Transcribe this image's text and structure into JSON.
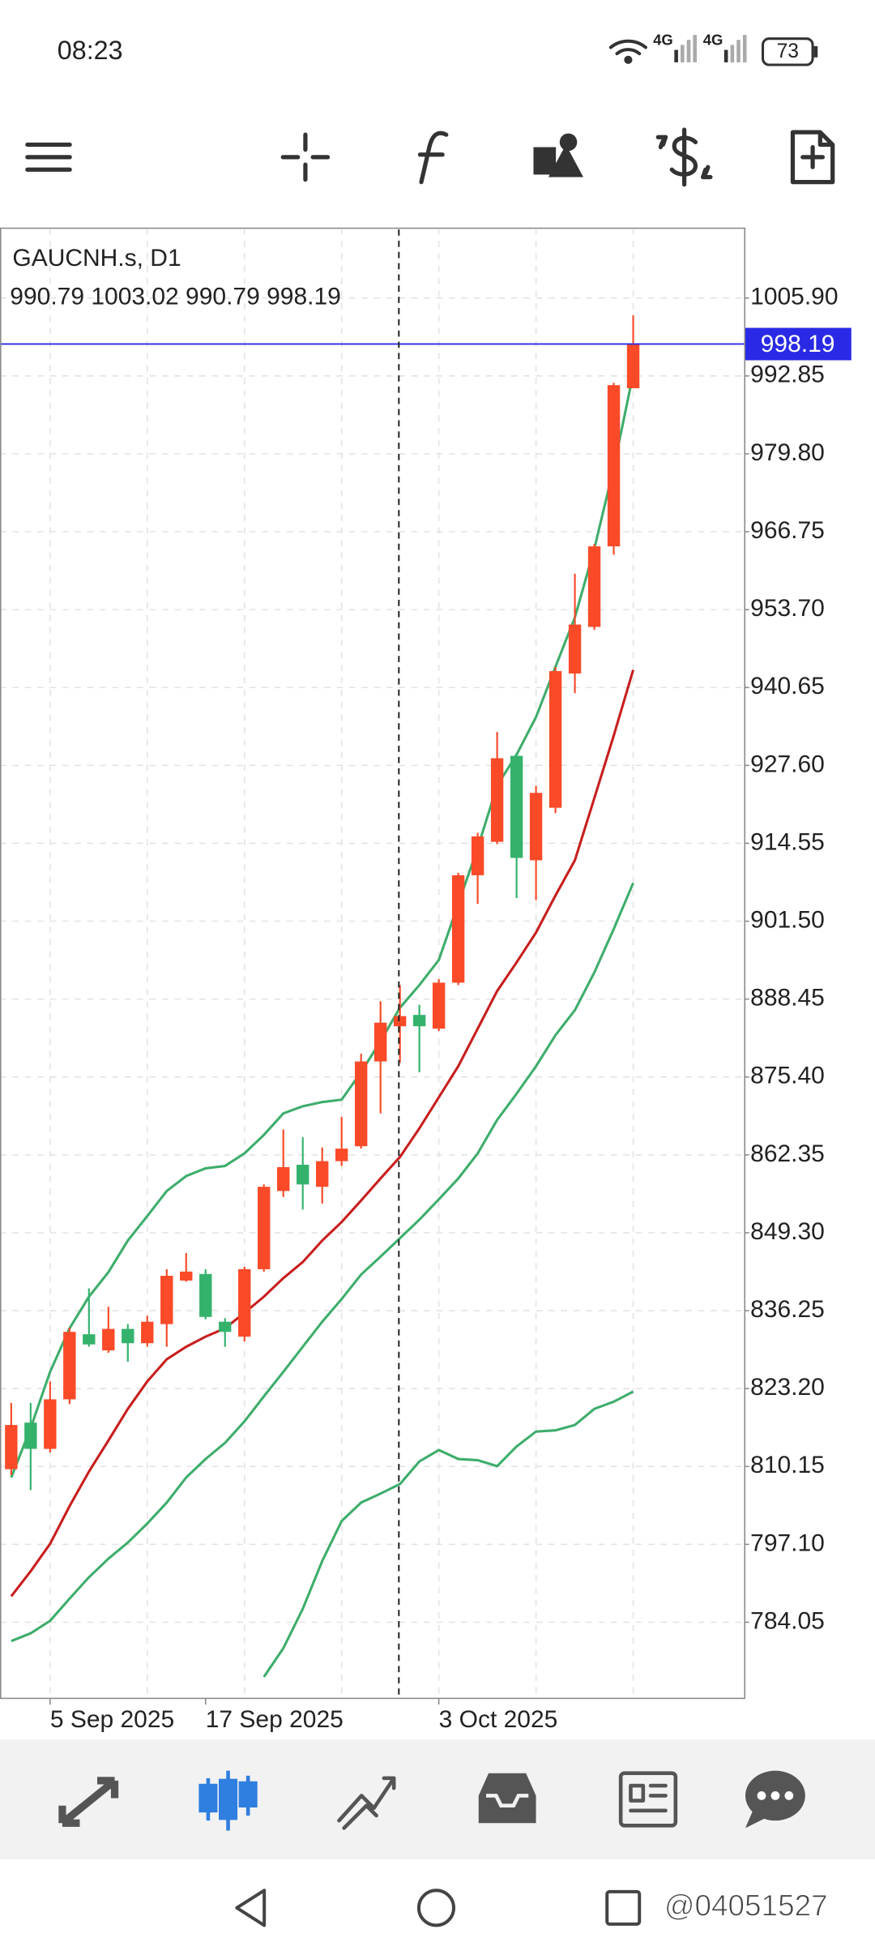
{
  "status_bar": {
    "time": "08:23",
    "network": [
      "4G",
      "4G"
    ],
    "battery": "73"
  },
  "chart_data": {
    "type": "candlestick",
    "symbol_label": "GAUCNH.s, D1",
    "ohlc_label": "990.79 1003.02 990.79 998.19",
    "categories": [
      null,
      null,
      "5 Sep 2025",
      null,
      null,
      null,
      null,
      null,
      null,
      null,
      "17 Sep 2025",
      null,
      null,
      null,
      null,
      null,
      null,
      null,
      null,
      null,
      null,
      null,
      "3 Oct 2025",
      null,
      null,
      null,
      null,
      null,
      null,
      null,
      null,
      null,
      null
    ],
    "open": [
      809.7,
      817.5,
      813.1,
      821.4,
      832.3,
      829.6,
      833.2,
      830.8,
      834.0,
      841.3,
      842.4,
      834.4,
      831.9,
      843.2,
      856.3,
      860.7,
      857.0,
      861.3,
      863.8,
      878.0,
      883.9,
      885.8,
      883.5,
      891.2,
      909.2,
      914.8,
      929.2,
      911.7,
      920.5,
      943.0,
      950.8,
      964.3,
      990.79
    ],
    "high": [
      820.8,
      820.8,
      824.4,
      833.4,
      840.0,
      836.9,
      834.0,
      835.4,
      843.2,
      845.9,
      843.2,
      835.0,
      843.6,
      857.4,
      866.6,
      865.3,
      863.6,
      868.7,
      879.3,
      888.1,
      890.8,
      887.5,
      891.8,
      909.6,
      916.3,
      933.2,
      929.7,
      924.2,
      944.1,
      959.7,
      964.7,
      991.7,
      1003.02
    ],
    "low": [
      808.7,
      806.2,
      812.5,
      820.6,
      830.2,
      829.2,
      827.7,
      830.2,
      830.2,
      841.1,
      834.8,
      830.2,
      831.1,
      842.8,
      855.3,
      853.2,
      854.2,
      860.5,
      863.4,
      869.3,
      877.8,
      876.2,
      883.1,
      890.8,
      904.4,
      914.4,
      905.4,
      905.0,
      919.6,
      939.7,
      950.3,
      962.9,
      990.79
    ],
    "close": [
      817.1,
      813.1,
      821.4,
      832.7,
      830.6,
      833.2,
      830.8,
      834.4,
      842.1,
      842.8,
      835.2,
      832.7,
      843.2,
      857.0,
      860.3,
      857.4,
      861.3,
      863.4,
      878.0,
      884.5,
      885.6,
      883.9,
      891.2,
      909.2,
      915.7,
      928.8,
      912.1,
      923.0,
      943.4,
      951.2,
      964.3,
      991.3,
      998.19
    ],
    "up_color": "#fa4a28",
    "down_color": "#34b26c",
    "lines": [
      {
        "color": "#3ead6b",
        "values": [
          808.3,
          816.6,
          826.0,
          833.3,
          838.6,
          842.7,
          848.0,
          852.1,
          856.3,
          858.8,
          860.1,
          860.5,
          862.6,
          865.7,
          869.3,
          870.5,
          871.2,
          871.6,
          876.2,
          881.4,
          887.0,
          890.8,
          895.0,
          904.4,
          913.8,
          924.2,
          929.4,
          935.7,
          944.1,
          952.4,
          963.9,
          977.5,
          993.2
        ]
      },
      {
        "color": "#c81e1e",
        "values": [
          788.4,
          792.6,
          797.2,
          803.5,
          809.3,
          814.5,
          819.8,
          824.4,
          828.1,
          830.2,
          831.9,
          833.3,
          835.9,
          838.6,
          841.7,
          844.4,
          848.0,
          851.1,
          854.7,
          858.4,
          862.0,
          866.8,
          872.0,
          877.2,
          883.5,
          889.8,
          894.6,
          899.6,
          905.8,
          911.7,
          922.1,
          932.6,
          943.6
        ]
      },
      {
        "color": "#3ead6b",
        "values": [
          780.9,
          782.2,
          784.3,
          788.0,
          791.6,
          794.7,
          797.4,
          800.6,
          804.1,
          808.3,
          811.4,
          814.1,
          817.7,
          821.9,
          826.0,
          830.2,
          834.4,
          838.2,
          842.3,
          845.3,
          848.4,
          851.5,
          854.9,
          858.4,
          862.6,
          868.2,
          872.6,
          877.2,
          882.4,
          886.6,
          892.9,
          900.2,
          907.9
        ]
      },
      {
        "color": "#3ead6b",
        "values": [
          null,
          null,
          null,
          null,
          null,
          null,
          null,
          null,
          null,
          null,
          null,
          null,
          null,
          774.9,
          779.7,
          786.3,
          794.3,
          801.0,
          804.1,
          805.6,
          807.2,
          811.0,
          812.9,
          811.4,
          811.2,
          810.2,
          813.5,
          816.0,
          816.2,
          817.1,
          819.8,
          821.0,
          822.7
        ]
      }
    ],
    "price_line_color": "#2a2ae6",
    "ylim": [
      771.3,
      1017.6
    ],
    "yticks": [
      {
        "value": 1005.9,
        "label": "1005.90"
      },
      992.85,
      {
        "value": 979.8,
        "label": "979.80"
      },
      966.75,
      {
        "value": 953.7,
        "label": "953.70"
      },
      940.65,
      {
        "value": 927.6,
        "label": "927.60"
      },
      914.55,
      {
        "value": 901.5,
        "label": "901.50"
      },
      888.45,
      {
        "value": 875.4,
        "label": "875.40"
      },
      862.35,
      {
        "value": 849.3,
        "label": "849.30"
      },
      836.25,
      {
        "value": 823.2,
        "label": "823.20"
      },
      810.15,
      {
        "value": 797.1,
        "label": "797.10"
      },
      784.05
    ],
    "grid": true
  },
  "watermark": "@04051527"
}
